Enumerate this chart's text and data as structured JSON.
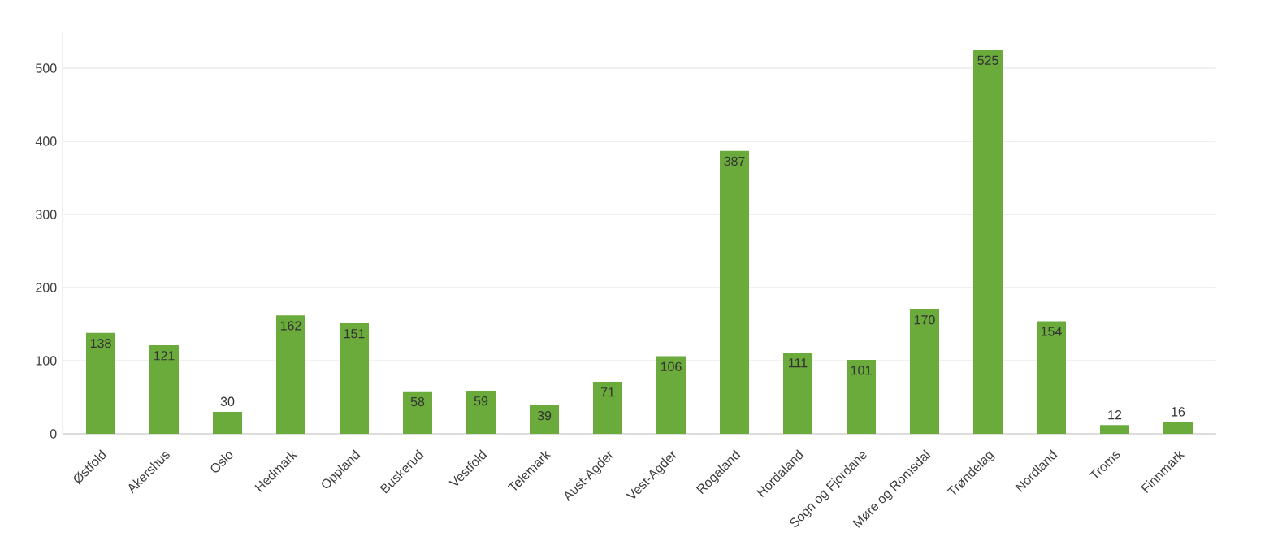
{
  "chart_data": {
    "type": "bar",
    "categories": [
      "Østfold",
      "Akershus",
      "Oslo",
      "Hedmark",
      "Oppland",
      "Buskerud",
      "Vestfold",
      "Telemark",
      "Aust-Agder",
      "Vest-Agder",
      "Rogaland",
      "Hordaland",
      "Sogn og Fjordane",
      "Møre og Romsdal",
      "Trøndelag",
      "Nordland",
      "Troms",
      "Finnmark"
    ],
    "values": [
      138,
      121,
      30,
      162,
      151,
      58,
      59,
      39,
      71,
      106,
      387,
      111,
      101,
      170,
      525,
      154,
      12,
      16
    ],
    "color": "#6aab3c",
    "ylim": [
      0,
      550
    ],
    "yticks": [
      0,
      100,
      200,
      300,
      400,
      500
    ],
    "grid": "y",
    "data_labels": true
  }
}
